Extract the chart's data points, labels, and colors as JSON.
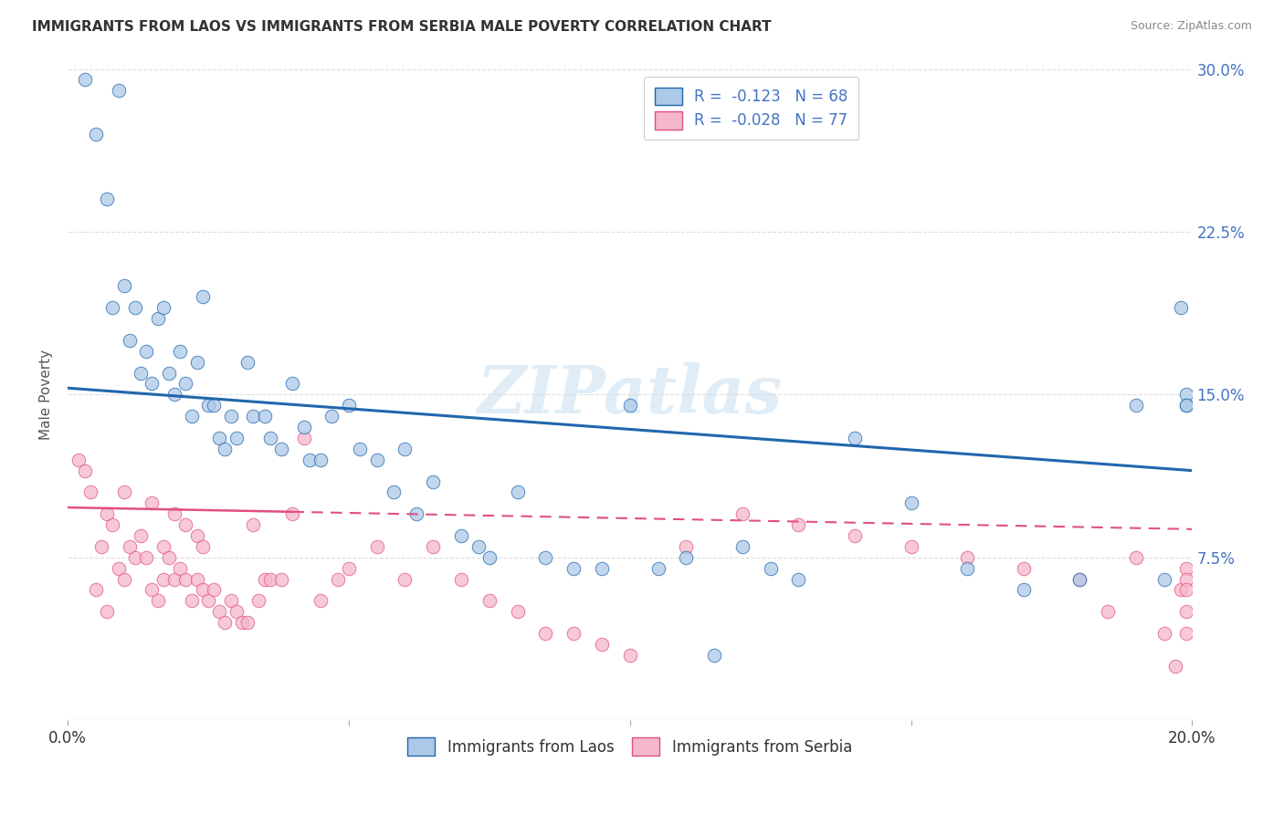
{
  "title": "IMMIGRANTS FROM LAOS VS IMMIGRANTS FROM SERBIA MALE POVERTY CORRELATION CHART",
  "source": "Source: ZipAtlas.com",
  "ylabel": "Male Poverty",
  "xmin": 0.0,
  "xmax": 0.2,
  "ymin": 0.0,
  "ymax": 0.3,
  "xticks": [
    0.0,
    0.05,
    0.1,
    0.15,
    0.2
  ],
  "yticks": [
    0.0,
    0.075,
    0.15,
    0.225,
    0.3
  ],
  "ytick_labels_right": [
    "",
    "7.5%",
    "15.0%",
    "22.5%",
    "30.0%"
  ],
  "xtick_labels": [
    "0.0%",
    "",
    "",
    "",
    "20.0%"
  ],
  "legend_r_laos": "R =  -0.123",
  "legend_n_laos": "N = 68",
  "legend_r_serbia": "R =  -0.028",
  "legend_n_serbia": "N = 77",
  "color_laos": "#adc9e8",
  "color_serbia": "#f5b8cb",
  "color_laos_line": "#2166ac",
  "color_serbia_line": "#e05080",
  "watermark": "ZIPatlas",
  "laos_x": [
    0.003,
    0.005,
    0.007,
    0.008,
    0.009,
    0.01,
    0.011,
    0.012,
    0.013,
    0.014,
    0.015,
    0.016,
    0.017,
    0.018,
    0.019,
    0.02,
    0.021,
    0.022,
    0.023,
    0.024,
    0.025,
    0.026,
    0.027,
    0.028,
    0.029,
    0.03,
    0.032,
    0.033,
    0.035,
    0.036,
    0.038,
    0.04,
    0.042,
    0.043,
    0.045,
    0.047,
    0.05,
    0.052,
    0.055,
    0.058,
    0.06,
    0.062,
    0.065,
    0.07,
    0.073,
    0.075,
    0.08,
    0.085,
    0.09,
    0.095,
    0.1,
    0.105,
    0.11,
    0.115,
    0.12,
    0.125,
    0.13,
    0.14,
    0.15,
    0.16,
    0.17,
    0.18,
    0.19,
    0.195,
    0.198,
    0.199,
    0.199,
    0.199
  ],
  "laos_y": [
    0.295,
    0.27,
    0.24,
    0.19,
    0.29,
    0.2,
    0.175,
    0.19,
    0.16,
    0.17,
    0.155,
    0.185,
    0.19,
    0.16,
    0.15,
    0.17,
    0.155,
    0.14,
    0.165,
    0.195,
    0.145,
    0.145,
    0.13,
    0.125,
    0.14,
    0.13,
    0.165,
    0.14,
    0.14,
    0.13,
    0.125,
    0.155,
    0.135,
    0.12,
    0.12,
    0.14,
    0.145,
    0.125,
    0.12,
    0.105,
    0.125,
    0.095,
    0.11,
    0.085,
    0.08,
    0.075,
    0.105,
    0.075,
    0.07,
    0.07,
    0.145,
    0.07,
    0.075,
    0.03,
    0.08,
    0.07,
    0.065,
    0.13,
    0.1,
    0.07,
    0.06,
    0.065,
    0.145,
    0.065,
    0.19,
    0.15,
    0.145,
    0.145
  ],
  "serbia_x": [
    0.002,
    0.003,
    0.004,
    0.005,
    0.006,
    0.007,
    0.007,
    0.008,
    0.009,
    0.01,
    0.01,
    0.011,
    0.012,
    0.013,
    0.014,
    0.015,
    0.015,
    0.016,
    0.017,
    0.017,
    0.018,
    0.019,
    0.019,
    0.02,
    0.021,
    0.021,
    0.022,
    0.023,
    0.023,
    0.024,
    0.024,
    0.025,
    0.026,
    0.027,
    0.028,
    0.029,
    0.03,
    0.031,
    0.032,
    0.033,
    0.034,
    0.035,
    0.036,
    0.038,
    0.04,
    0.042,
    0.045,
    0.048,
    0.05,
    0.055,
    0.06,
    0.065,
    0.07,
    0.075,
    0.08,
    0.085,
    0.09,
    0.095,
    0.1,
    0.11,
    0.12,
    0.13,
    0.14,
    0.15,
    0.16,
    0.17,
    0.18,
    0.185,
    0.19,
    0.195,
    0.197,
    0.198,
    0.199,
    0.199,
    0.199,
    0.199,
    0.199
  ],
  "serbia_y": [
    0.12,
    0.115,
    0.105,
    0.06,
    0.08,
    0.05,
    0.095,
    0.09,
    0.07,
    0.065,
    0.105,
    0.08,
    0.075,
    0.085,
    0.075,
    0.06,
    0.1,
    0.055,
    0.065,
    0.08,
    0.075,
    0.065,
    0.095,
    0.07,
    0.065,
    0.09,
    0.055,
    0.065,
    0.085,
    0.06,
    0.08,
    0.055,
    0.06,
    0.05,
    0.045,
    0.055,
    0.05,
    0.045,
    0.045,
    0.09,
    0.055,
    0.065,
    0.065,
    0.065,
    0.095,
    0.13,
    0.055,
    0.065,
    0.07,
    0.08,
    0.065,
    0.08,
    0.065,
    0.055,
    0.05,
    0.04,
    0.04,
    0.035,
    0.03,
    0.08,
    0.095,
    0.09,
    0.085,
    0.08,
    0.075,
    0.07,
    0.065,
    0.05,
    0.075,
    0.04,
    0.025,
    0.06,
    0.07,
    0.065,
    0.06,
    0.05,
    0.04
  ],
  "background_color": "#ffffff",
  "grid_color": "#dddddd",
  "laos_line_y_at_0": 0.153,
  "laos_line_y_at_020": 0.115,
  "serbia_line_y_at_0": 0.098,
  "serbia_line_y_at_004": 0.096,
  "serbia_line_y_at_020": 0.088
}
